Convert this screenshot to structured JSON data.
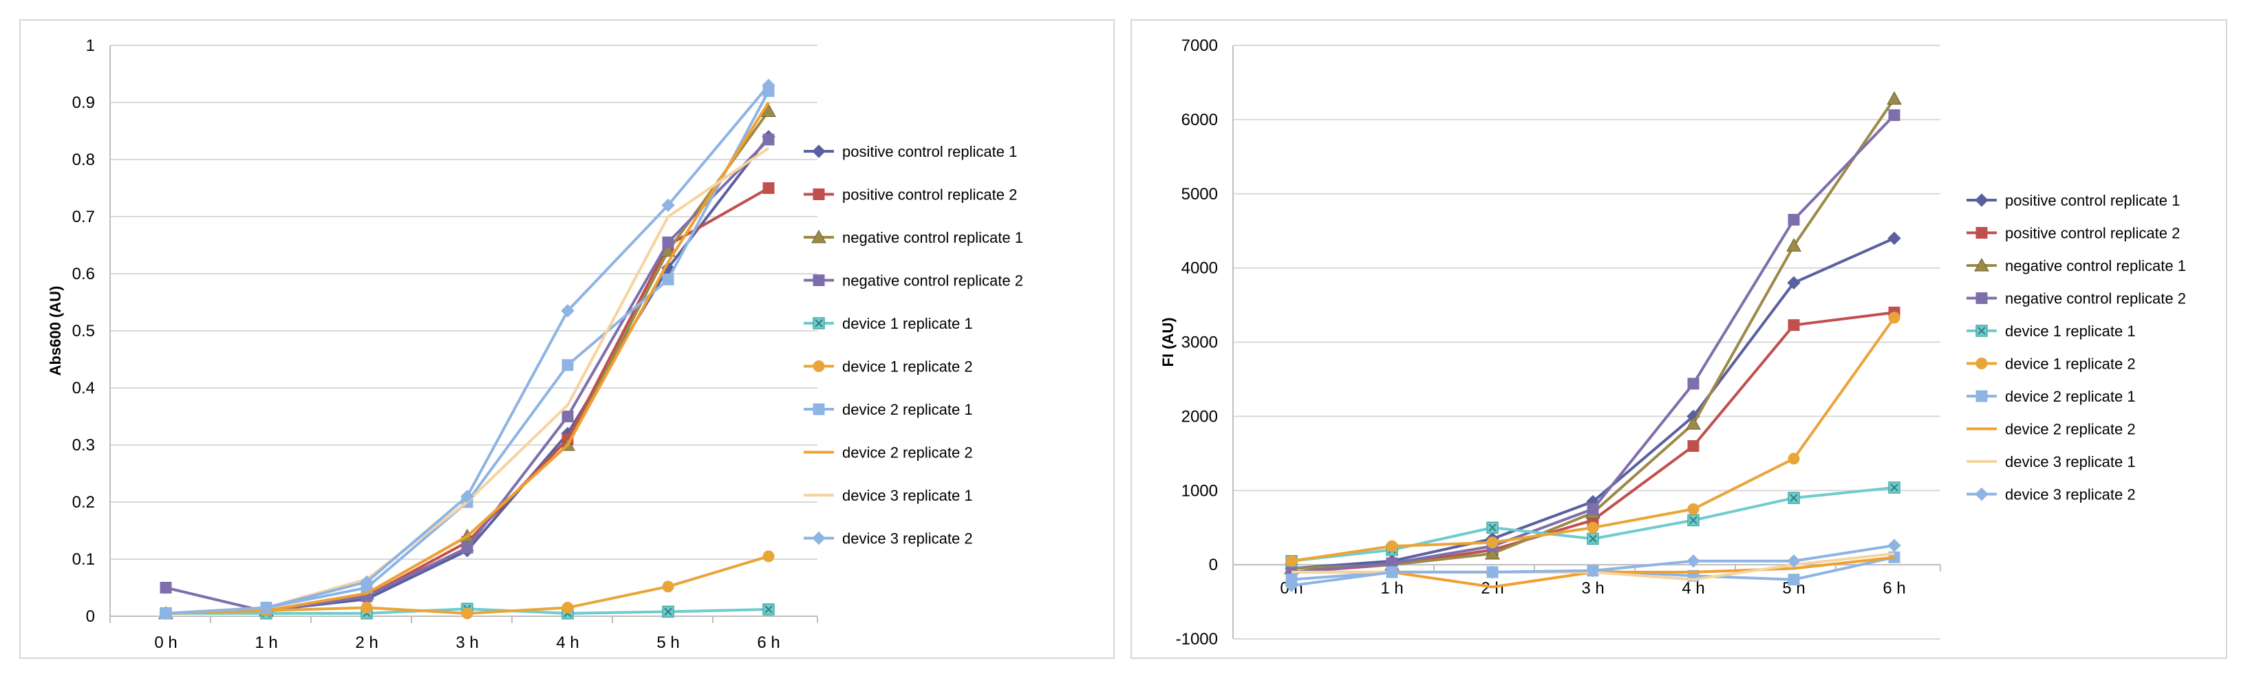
{
  "chart_data": [
    {
      "type": "line",
      "ylabel": "Abs600 (AU)",
      "xlabel": "",
      "categories": [
        "0 h",
        "1 h",
        "2 h",
        "3 h",
        "4 h",
        "5 h",
        "6 h"
      ],
      "ylim": [
        0,
        1
      ],
      "yticks": [
        "0",
        "0.1",
        "0.2",
        "0.3",
        "0.4",
        "0.5",
        "0.6",
        "0.7",
        "0.8",
        "0.9",
        "1"
      ],
      "grid": true,
      "legend_position": "right",
      "series": [
        {
          "name": "positive control replicate 1",
          "color": "#5a5fa0",
          "marker": "diamond",
          "values": [
            0.005,
            0.01,
            0.03,
            0.115,
            0.32,
            0.61,
            0.84
          ]
        },
        {
          "name": "positive control replicate 2",
          "color": "#c0504d",
          "marker": "square",
          "values": [
            0.005,
            0.008,
            0.035,
            0.13,
            0.31,
            0.65,
            0.75
          ]
        },
        {
          "name": "negative control replicate 1",
          "color": "#9c8a49",
          "marker": "triangle",
          "values": [
            0.005,
            0.01,
            0.04,
            0.14,
            0.3,
            0.64,
            0.885
          ]
        },
        {
          "name": "negative control replicate 2",
          "color": "#7e6fac",
          "marker": "square",
          "values": [
            0.05,
            0.008,
            0.035,
            0.12,
            0.35,
            0.655,
            0.835
          ]
        },
        {
          "name": "device 1 replicate 1",
          "color": "#70cccc",
          "marker": "xsquare",
          "values": [
            0.005,
            0.005,
            0.005,
            0.013,
            0.005,
            0.008,
            0.012
          ]
        },
        {
          "name": "device 1 replicate 2",
          "color": "#e9a538",
          "marker": "circle",
          "values": [
            0.005,
            0.01,
            0.015,
            0.005,
            0.015,
            0.052,
            0.105
          ]
        },
        {
          "name": "device 2 replicate 1",
          "color": "#8eb4e3",
          "marker": "square",
          "values": [
            0.005,
            0.015,
            0.05,
            0.2,
            0.44,
            0.59,
            0.92
          ]
        },
        {
          "name": "device 2 replicate 2",
          "color": "#f0a030",
          "marker": "none",
          "values": [
            0.005,
            0.01,
            0.04,
            0.14,
            0.3,
            0.62,
            0.9
          ]
        },
        {
          "name": "device 3 replicate 1",
          "color": "#f6d4a0",
          "marker": "none",
          "values": [
            0.005,
            0.015,
            0.065,
            0.2,
            0.37,
            0.7,
            0.82
          ]
        },
        {
          "name": "device 3 replicate 2",
          "color": "#8eb4e3",
          "marker": "diamond",
          "values": [
            0.005,
            0.015,
            0.06,
            0.21,
            0.535,
            0.72,
            0.93
          ]
        }
      ]
    },
    {
      "type": "line",
      "ylabel": "FI (AU)",
      "xlabel": "",
      "categories": [
        "0 h",
        "1 h",
        "2 h",
        "3 h",
        "4 h",
        "5 h",
        "6 h"
      ],
      "ylim": [
        -1000,
        7000
      ],
      "yticks": [
        "-1000",
        "0",
        "1000",
        "2000",
        "3000",
        "4000",
        "5000",
        "6000",
        "7000"
      ],
      "grid": true,
      "legend_position": "right",
      "series": [
        {
          "name": "positive control replicate 1",
          "color": "#5a5fa0",
          "marker": "diamond",
          "values": [
            -50,
            50,
            350,
            850,
            2000,
            3800,
            4400
          ]
        },
        {
          "name": "positive control replicate 2",
          "color": "#c0504d",
          "marker": "square",
          "values": [
            -100,
            0,
            200,
            600,
            1600,
            3230,
            3400
          ]
        },
        {
          "name": "negative control replicate 1",
          "color": "#9c8a49",
          "marker": "triangle",
          "values": [
            -50,
            0,
            150,
            700,
            1900,
            4300,
            6280
          ]
        },
        {
          "name": "negative control replicate 2",
          "color": "#7e6fac",
          "marker": "square",
          "values": [
            -100,
            20,
            250,
            750,
            2440,
            4650,
            6060
          ]
        },
        {
          "name": "device 1 replicate 1",
          "color": "#70cccc",
          "marker": "xsquare",
          "values": [
            50,
            200,
            500,
            350,
            600,
            900,
            1040
          ]
        },
        {
          "name": "device 1 replicate 2",
          "color": "#e9a538",
          "marker": "circle",
          "values": [
            50,
            250,
            300,
            500,
            750,
            1430,
            3330
          ]
        },
        {
          "name": "device 2 replicate 1",
          "color": "#8eb4e3",
          "marker": "square",
          "values": [
            -200,
            -100,
            -100,
            -80,
            -150,
            -200,
            100
          ]
        },
        {
          "name": "device 2 replicate 2",
          "color": "#f0a030",
          "marker": "none",
          "values": [
            -100,
            -100,
            -300,
            -100,
            -100,
            -50,
            100
          ]
        },
        {
          "name": "device 3 replicate 1",
          "color": "#f6d4a0",
          "marker": "none",
          "values": [
            -100,
            -100,
            -100,
            -100,
            -200,
            0,
            150
          ]
        },
        {
          "name": "device 3 replicate 2",
          "color": "#8eb4e3",
          "marker": "diamond",
          "values": [
            -280,
            -100,
            -100,
            -80,
            50,
            50,
            260
          ]
        }
      ]
    }
  ]
}
